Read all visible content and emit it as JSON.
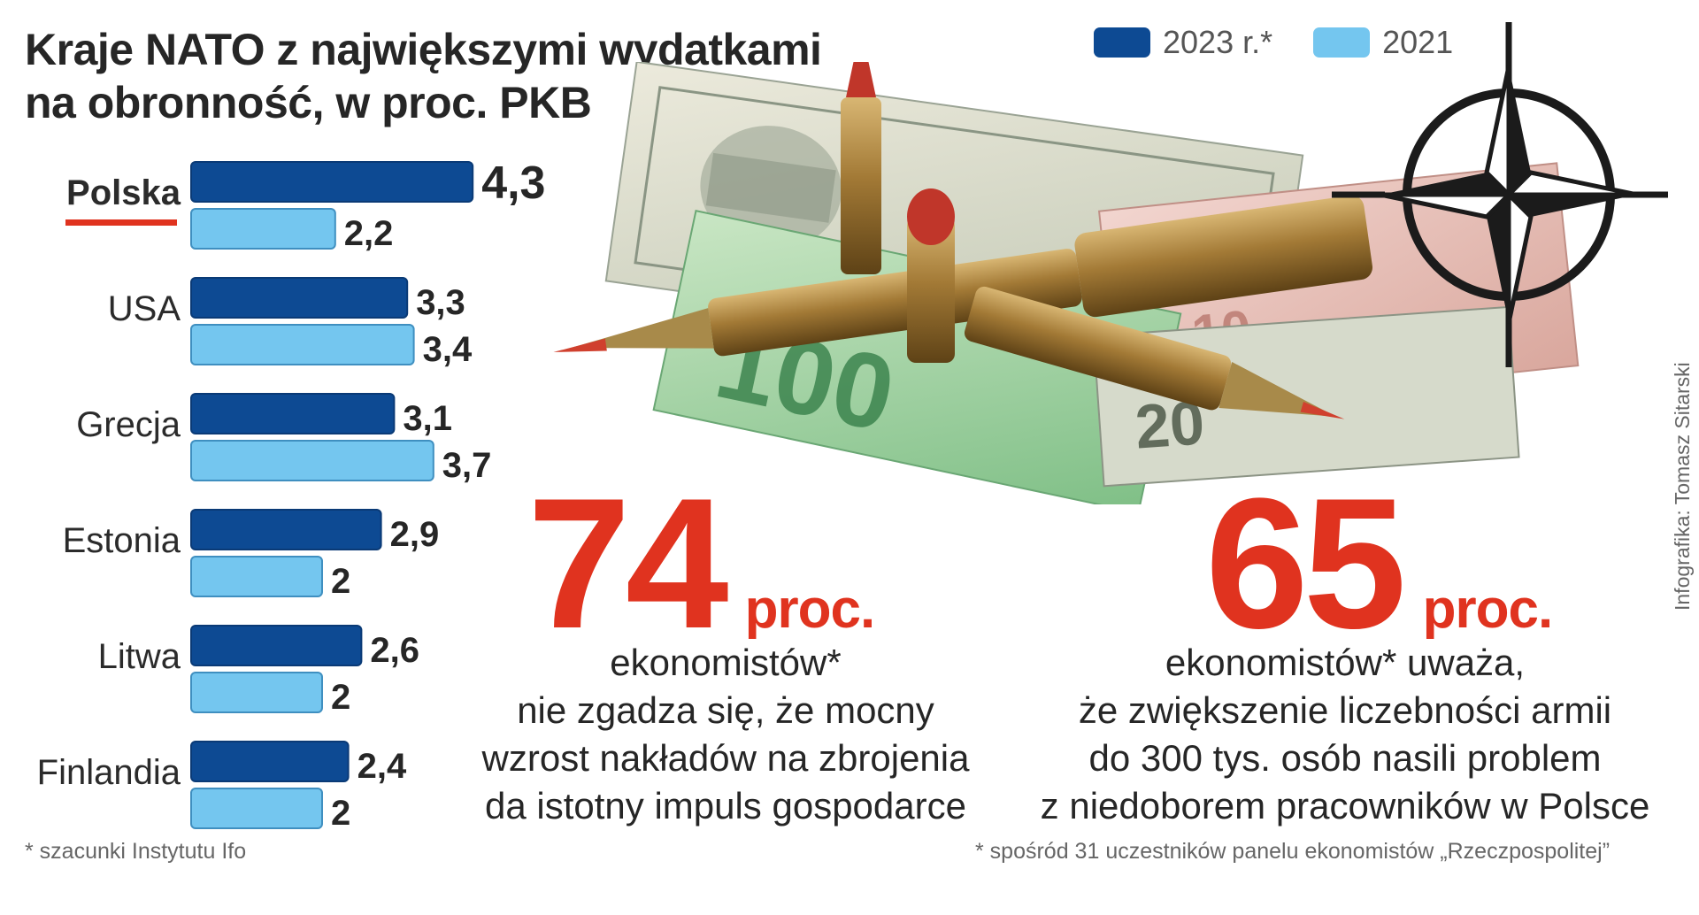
{
  "title_line1": "Kraje NATO z największymi wydatkami",
  "title_line2": "na obronność, w proc. PKB",
  "legend": [
    {
      "label": "2023 r.*",
      "color": "#0d4a93"
    },
    {
      "label": "2021",
      "color": "#74c6ef"
    }
  ],
  "chart_data": {
    "type": "bar",
    "orientation": "horizontal",
    "title": "Kraje NATO z największymi wydatkami na obronność, w proc. PKB",
    "categories": [
      "Polska",
      "USA",
      "Grecja",
      "Estonia",
      "Litwa",
      "Finlandia"
    ],
    "highlight_category": "Polska",
    "series": [
      {
        "name": "2023 r.*",
        "color": "#0d4a93",
        "values": [
          4.3,
          3.3,
          3.1,
          2.9,
          2.6,
          2.4
        ],
        "labels": [
          "4,3",
          "3,3",
          "3,1",
          "2,9",
          "2,6",
          "2,4"
        ]
      },
      {
        "name": "2021",
        "color": "#74c6ef",
        "values": [
          2.2,
          3.4,
          3.7,
          2.0,
          2.0,
          2.0
        ],
        "labels": [
          "2,2",
          "3,4",
          "3,7",
          "2",
          "2",
          "2"
        ]
      }
    ],
    "legend_position": "top-right",
    "grid": false
  },
  "stat1": {
    "number": "74",
    "unit": "proc.",
    "lines": [
      "ekonomistów*",
      "nie zgadza się, że mocny",
      "wzrost nakładów na zbrojenia",
      "da istotny impuls gospodarce"
    ]
  },
  "stat2": {
    "number": "65",
    "unit": "proc.",
    "lines": [
      "ekonomistów* uważa,",
      "że zwiększenie liczebności armii",
      "do 300 tys. osób nasili problem",
      "z niedoborem pracowników w Polsce"
    ]
  },
  "footnote_left": "* szacunki Instytutu Ifo",
  "footnote_right": "* spośród 31 uczestników panelu ekonomistów „Rzeczpospolitej”",
  "credit": "Infografika: Tomasz Sitarski",
  "colors": {
    "accent_red": "#e0331f",
    "dark_blue": "#0d4a93",
    "light_blue": "#74c6ef"
  }
}
